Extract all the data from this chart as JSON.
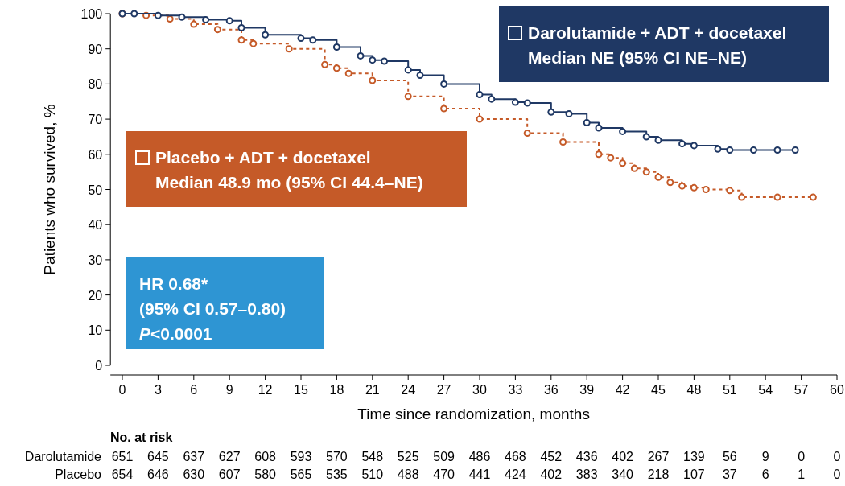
{
  "chart_data": {
    "type": "step",
    "xlabel": "Time since randomization, months",
    "ylabel": "Patients who survived, %",
    "xlim": [
      -1,
      60
    ],
    "xticks": [
      0,
      3,
      6,
      9,
      12,
      15,
      18,
      21,
      24,
      27,
      30,
      33,
      36,
      39,
      42,
      45,
      48,
      51,
      54,
      57,
      60
    ],
    "ylim": [
      0,
      100
    ],
    "yticks": [
      0,
      10,
      20,
      30,
      40,
      50,
      60,
      70,
      80,
      90,
      100
    ],
    "marker": "circle",
    "grid": false,
    "legend": "top right",
    "series": [
      {
        "name": "Darolutamide + ADT + docetaxel",
        "color": "#1f3864",
        "line_style": "solid",
        "x": [
          0,
          1,
          3,
          5,
          7,
          9,
          10,
          12,
          15,
          16,
          18,
          20,
          21,
          22,
          24,
          25,
          27,
          30,
          31,
          33,
          34,
          36,
          37.5,
          39,
          40,
          42,
          44,
          45,
          47,
          48,
          50,
          51,
          53,
          55,
          56.5
        ],
        "values": [
          100,
          100,
          99.5,
          99,
          98.3,
          98,
          96,
          94,
          93,
          92.5,
          90.5,
          88,
          86.8,
          86.5,
          84,
          82.5,
          80,
          77,
          75.7,
          74.8,
          74.6,
          72,
          71.5,
          69,
          67.5,
          66.5,
          65,
          64,
          63,
          62.5,
          61.5,
          61.2,
          61.2,
          61.2,
          61.2
        ]
      },
      {
        "name": "Placebo + ADT + docetaxel",
        "color": "#c55a28",
        "line_style": "dashed",
        "x": [
          0,
          2,
          4,
          6,
          8,
          10,
          11,
          14,
          17,
          18,
          19,
          21,
          24,
          27,
          30,
          34,
          37,
          40,
          41,
          42,
          43,
          44,
          45,
          46,
          47,
          48,
          49,
          51,
          52,
          55,
          58
        ],
        "values": [
          100,
          99.5,
          98.5,
          97,
          95.5,
          92.5,
          91.5,
          90,
          85.5,
          84.5,
          83,
          81,
          76.5,
          73,
          70,
          66,
          63.5,
          60,
          59,
          57.5,
          56,
          55,
          53.5,
          52,
          51,
          50.5,
          50,
          49.7,
          47.8,
          47.8,
          47.8
        ]
      }
    ],
    "annotations": [
      "Median NE (95% CI NE–NE)",
      "Median 48.9 mo (95% CI 44.4–NE)",
      "HR 0.68*",
      "(95% CI 0.57–0.80)",
      "P<0.0001",
      "No. at risk",
      "Darolutamide 651 645 637 627 608 593 570 548 525 509 486 468 452 436 402 267 139 56 9 0 0",
      "Placebo 654 646 630 607 580 565 535 510 488 470 441 424 402 383 340 218 107 37 6 1 0"
    ]
  }
}
